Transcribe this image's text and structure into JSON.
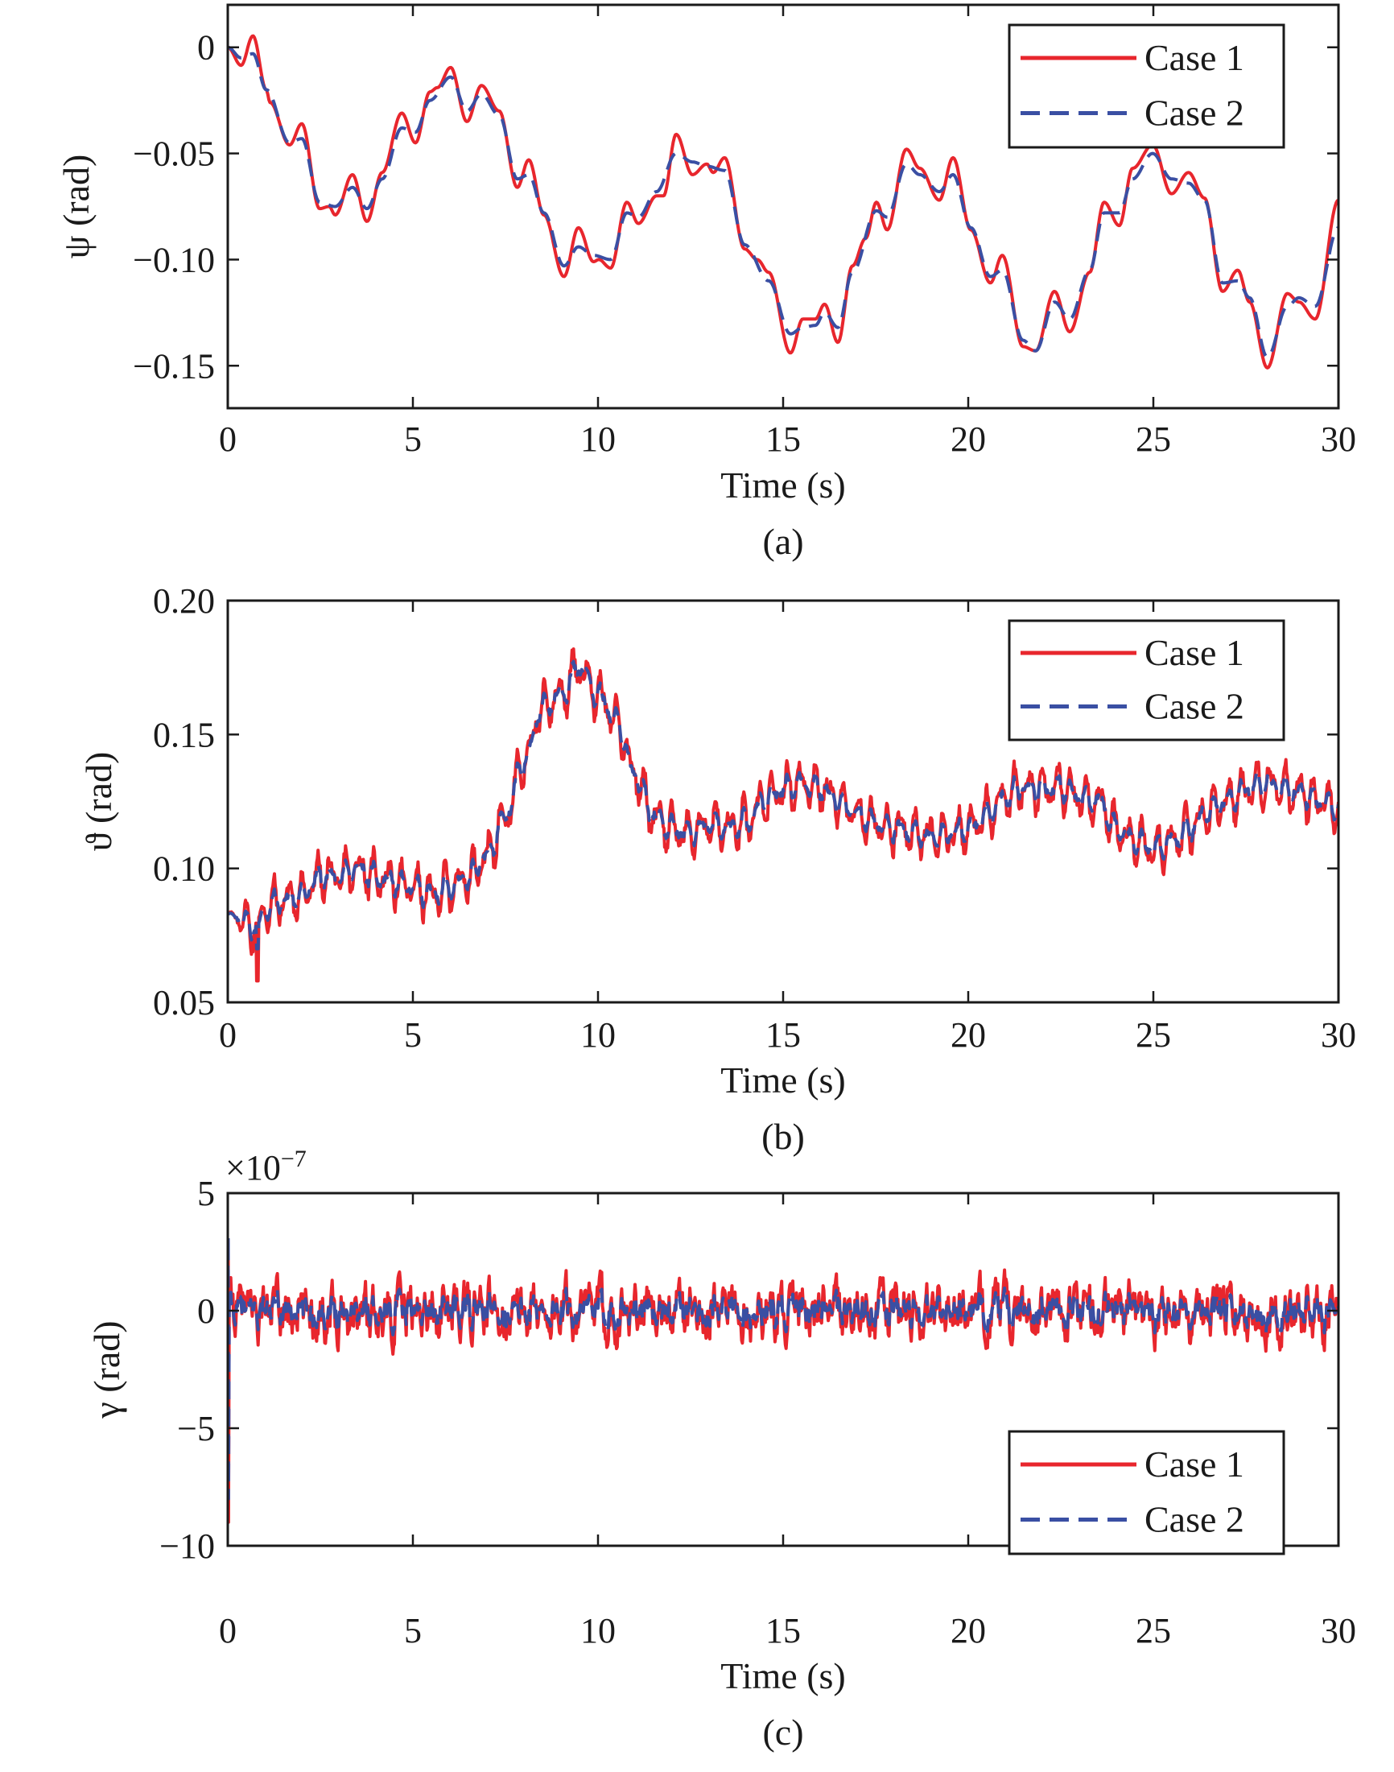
{
  "colors": {
    "case1": "#e8262d",
    "case2": "#3a4fa3",
    "axis": "#1a1a1a"
  },
  "chart_data": [
    {
      "type": "line",
      "panel_label": "(a)",
      "xlabel": "Time (s)",
      "ylabel": "ψ (rad)",
      "xlim": [
        0,
        30
      ],
      "ylim": [
        -0.17,
        0.02
      ],
      "xticks": [
        0,
        5,
        10,
        15,
        20,
        25,
        30
      ],
      "xtick_labels": [
        "0",
        "5",
        "10",
        "15",
        "20",
        "25",
        "30"
      ],
      "yticks": [
        0,
        -0.05,
        -0.1,
        -0.15
      ],
      "ytick_labels": [
        "0",
        "−0.05",
        "−0.10",
        "−0.15"
      ],
      "multiplier": "",
      "legend": {
        "placement": "top-right",
        "entries": [
          "Case 1",
          "Case 2"
        ]
      },
      "series": [
        {
          "name": "Case 1",
          "style": "solid",
          "t": [
            0,
            0.36,
            0.68,
            1.04,
            1.14,
            1.67,
            2.0,
            2.48,
            2.74,
            2.9,
            3.37,
            3.76,
            4.17,
            4.7,
            5.07,
            5.46,
            5.66,
            6.02,
            6.46,
            6.85,
            7.33,
            7.82,
            8.13,
            8.54,
            9.08,
            9.47,
            9.88,
            10.02,
            10.34,
            10.78,
            11.09,
            11.58,
            11.77,
            12.11,
            12.55,
            12.94,
            13.11,
            13.42,
            13.96,
            14.3,
            14.61,
            15.2,
            15.53,
            15.87,
            16.12,
            16.48,
            16.87,
            17.23,
            17.52,
            17.81,
            18.33,
            18.69,
            19.22,
            19.59,
            20.07,
            20.6,
            20.92,
            21.48,
            21.82,
            22.33,
            22.74,
            23.28,
            23.67,
            24.08,
            24.44,
            24.98,
            25.49,
            25.95,
            26.38,
            26.87,
            27.28,
            27.6,
            28.08,
            28.62,
            28.93,
            29.37,
            30
          ],
          "y": [
            0,
            -0.0085,
            0.0054,
            -0.02,
            -0.026,
            -0.046,
            -0.036,
            -0.076,
            -0.075,
            -0.079,
            -0.06,
            -0.082,
            -0.059,
            -0.031,
            -0.045,
            -0.021,
            -0.019,
            -0.0095,
            -0.035,
            -0.018,
            -0.03,
            -0.066,
            -0.053,
            -0.079,
            -0.108,
            -0.085,
            -0.101,
            -0.1,
            -0.104,
            -0.073,
            -0.083,
            -0.07,
            -0.07,
            -0.041,
            -0.06,
            -0.055,
            -0.059,
            -0.052,
            -0.095,
            -0.1,
            -0.106,
            -0.144,
            -0.128,
            -0.128,
            -0.121,
            -0.139,
            -0.103,
            -0.09,
            -0.073,
            -0.086,
            -0.048,
            -0.057,
            -0.072,
            -0.052,
            -0.086,
            -0.111,
            -0.098,
            -0.141,
            -0.143,
            -0.115,
            -0.134,
            -0.106,
            -0.073,
            -0.084,
            -0.057,
            -0.046,
            -0.069,
            -0.059,
            -0.071,
            -0.115,
            -0.105,
            -0.12,
            -0.151,
            -0.116,
            -0.12,
            -0.128,
            -0.072
          ]
        },
        {
          "name": "Case 2",
          "style": "dashed",
          "t": [
            0,
            0.36,
            0.68,
            1.04,
            1.67,
            2.0,
            2.48,
            2.9,
            3.37,
            3.76,
            4.17,
            4.7,
            5.07,
            5.46,
            6.02,
            6.46,
            6.85,
            7.33,
            7.82,
            8.13,
            8.54,
            9.08,
            9.47,
            9.88,
            10.34,
            10.78,
            11.09,
            11.58,
            12.11,
            12.55,
            12.94,
            13.42,
            13.96,
            14.61,
            15.2,
            15.53,
            15.87,
            16.12,
            16.48,
            16.87,
            17.52,
            17.81,
            18.33,
            18.69,
            19.22,
            19.59,
            20.07,
            20.6,
            20.92,
            21.48,
            21.82,
            22.33,
            22.74,
            23.28,
            23.67,
            24.08,
            24.44,
            24.98,
            25.49,
            25.95,
            26.38,
            26.87,
            27.28,
            27.6,
            28.08,
            28.62,
            28.93,
            29.37,
            30
          ],
          "y": [
            0,
            -0.005,
            -0.003,
            -0.02,
            -0.045,
            -0.043,
            -0.073,
            -0.075,
            -0.066,
            -0.076,
            -0.062,
            -0.038,
            -0.04,
            -0.025,
            -0.014,
            -0.03,
            -0.022,
            -0.032,
            -0.062,
            -0.06,
            -0.078,
            -0.103,
            -0.094,
            -0.098,
            -0.1,
            -0.078,
            -0.08,
            -0.068,
            -0.05,
            -0.054,
            -0.056,
            -0.058,
            -0.093,
            -0.11,
            -0.135,
            -0.132,
            -0.131,
            -0.125,
            -0.132,
            -0.106,
            -0.077,
            -0.08,
            -0.055,
            -0.06,
            -0.068,
            -0.06,
            -0.085,
            -0.108,
            -0.105,
            -0.138,
            -0.143,
            -0.12,
            -0.128,
            -0.105,
            -0.078,
            -0.078,
            -0.062,
            -0.05,
            -0.062,
            -0.064,
            -0.072,
            -0.111,
            -0.11,
            -0.118,
            -0.146,
            -0.122,
            -0.118,
            -0.122,
            -0.085
          ]
        }
      ]
    },
    {
      "type": "line",
      "panel_label": "(b)",
      "xlabel": "Time (s)",
      "ylabel": "ϑ (rad)",
      "xlim": [
        0,
        30
      ],
      "ylim": [
        0.05,
        0.2
      ],
      "xticks": [
        0,
        5,
        10,
        15,
        20,
        25,
        30
      ],
      "xtick_labels": [
        "0",
        "5",
        "10",
        "15",
        "20",
        "25",
        "30"
      ],
      "yticks": [
        0.05,
        0.1,
        0.15,
        0.2
      ],
      "ytick_labels": [
        "0.05",
        "0.10",
        "0.15",
        "0.20"
      ],
      "multiplier": "",
      "legend": {
        "placement": "top-right",
        "entries": [
          "Case 1",
          "Case 2"
        ]
      },
      "trend_t": [
        0,
        0.5,
        0.8,
        1,
        1.5,
        2,
        2.5,
        3,
        3.5,
        4,
        4.5,
        5,
        5.5,
        6,
        6.5,
        7,
        7.5,
        8,
        8.5,
        9,
        9.5,
        10,
        10.5,
        11,
        11.5,
        12,
        12.5,
        13,
        13.5,
        14,
        14.5,
        15,
        15.5,
        16,
        16.5,
        17,
        17.5,
        18,
        18.5,
        19,
        19.5,
        20,
        20.5,
        21,
        21.5,
        22,
        22.5,
        23,
        23.5,
        24,
        24.5,
        25,
        25.5,
        26,
        26.5,
        27,
        27.5,
        28,
        28.5,
        29,
        29.5,
        30
      ],
      "trend_y": [
        0.083,
        0.08,
        0.077,
        0.085,
        0.088,
        0.09,
        0.097,
        0.097,
        0.1,
        0.097,
        0.095,
        0.093,
        0.09,
        0.093,
        0.097,
        0.105,
        0.12,
        0.14,
        0.16,
        0.165,
        0.175,
        0.165,
        0.155,
        0.135,
        0.12,
        0.115,
        0.113,
        0.117,
        0.115,
        0.117,
        0.125,
        0.13,
        0.132,
        0.13,
        0.125,
        0.12,
        0.117,
        0.115,
        0.113,
        0.112,
        0.113,
        0.115,
        0.12,
        0.127,
        0.13,
        0.13,
        0.13,
        0.127,
        0.125,
        0.115,
        0.11,
        0.108,
        0.11,
        0.115,
        0.122,
        0.125,
        0.13,
        0.132,
        0.13,
        0.128,
        0.125,
        0.123
      ],
      "series": [
        {
          "name": "Case 1",
          "style": "solid",
          "oscillation_amplitude": 0.008,
          "spike": {
            "t": 0.8,
            "y": 0.058
          }
        },
        {
          "name": "Case 2",
          "style": "dashed",
          "oscillation_amplitude": 0.004,
          "spike": {
            "t": 0.8,
            "y": 0.07
          }
        }
      ]
    },
    {
      "type": "line",
      "panel_label": "(c)",
      "xlabel": "Time (s)",
      "ylabel": "γ (rad)",
      "xlim": [
        0,
        30
      ],
      "ylim": [
        -10,
        5
      ],
      "xticks": [
        0,
        5,
        10,
        15,
        20,
        25,
        30
      ],
      "xtick_labels": [
        "0",
        "5",
        "10",
        "15",
        "20",
        "25",
        "30"
      ],
      "yticks": [
        5,
        0,
        -5,
        -10
      ],
      "ytick_labels": [
        "5",
        "0",
        "−5",
        "−10"
      ],
      "multiplier": "×10",
      "multiplier_exp": "−7",
      "legend": {
        "placement": "bottom-right",
        "entries": [
          "Case 1",
          "Case 2"
        ]
      },
      "series": [
        {
          "name": "Case 1",
          "style": "solid",
          "mean": 0,
          "noise_amplitude": 0.9,
          "initial_spike": [
            3.0,
            -9.0
          ]
        },
        {
          "name": "Case 2",
          "style": "dashed",
          "mean": 0,
          "noise_amplitude": 0.5,
          "initial_spike": [
            3.2,
            -8.0
          ]
        }
      ]
    }
  ]
}
